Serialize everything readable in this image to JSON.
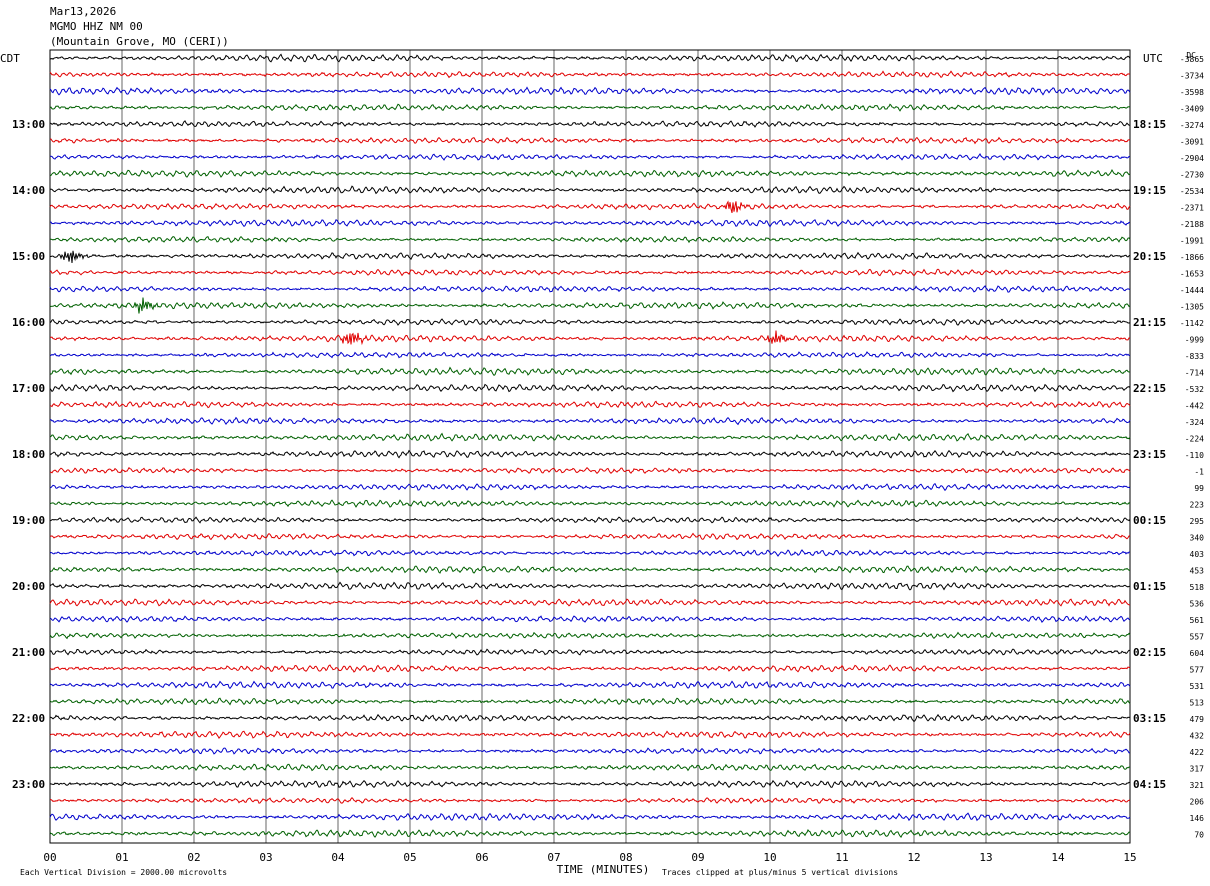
{
  "header": {
    "date": "Mar13,2026",
    "station": "MGMO HHZ NM 00",
    "location": "(Mountain Grove, MO (CERI))"
  },
  "chart_data": {
    "type": "line",
    "title": "Mar13,2026",
    "xlabel": "TIME (MINUTES)",
    "ylabel_left": "CDT",
    "ylabel_right": "UTC",
    "dc_label": "DC",
    "x_ticks": [
      "00",
      "01",
      "02",
      "03",
      "04",
      "05",
      "06",
      "07",
      "08",
      "09",
      "10",
      "11",
      "12",
      "13",
      "14",
      "15"
    ],
    "xlim": [
      0,
      15
    ],
    "trace_colors": [
      "#000000",
      "#e00000",
      "#0000cc",
      "#006000"
    ],
    "left_time_labels": [
      "13:00",
      "14:00",
      "15:00",
      "16:00",
      "17:00",
      "18:00",
      "19:00",
      "20:00",
      "21:00",
      "22:00",
      "23:00"
    ],
    "right_time_labels": [
      "18:15",
      "19:15",
      "20:15",
      "21:15",
      "22:15",
      "23:15",
      "00:15",
      "01:15",
      "02:15",
      "03:15",
      "04:15"
    ],
    "dc_offsets": [
      "-3865",
      "-3734",
      "-3598",
      "-3409",
      "-3274",
      "-3091",
      "-2904",
      "-2730",
      "-2534",
      "-2371",
      "-2188",
      "-1991",
      "-1866",
      "-1653",
      "-1444",
      "-1305",
      "-1142",
      "-999",
      "-833",
      "-714",
      "-532",
      "-442",
      "-324",
      "-224",
      "-110",
      "-1",
      "99",
      "223",
      "295",
      "340",
      "403",
      "453",
      "518",
      "536",
      "561",
      "557",
      "604",
      "577",
      "531",
      "513",
      "479",
      "432",
      "422",
      "317",
      "321",
      "206",
      "146",
      "70"
    ],
    "events": [
      {
        "trace": 9,
        "minute": 9.4
      },
      {
        "trace": 12,
        "minute": 0.2
      },
      {
        "trace": 15,
        "minute": 1.2
      },
      {
        "trace": 17,
        "minute": 4.1
      },
      {
        "trace": 17,
        "minute": 10.0
      }
    ],
    "grid": true
  },
  "footer": {
    "scale_note": "Each Vertical Division = 2000.00 microvolts",
    "clip_note": "Traces clipped at plus/minus 5 vertical divisions"
  }
}
